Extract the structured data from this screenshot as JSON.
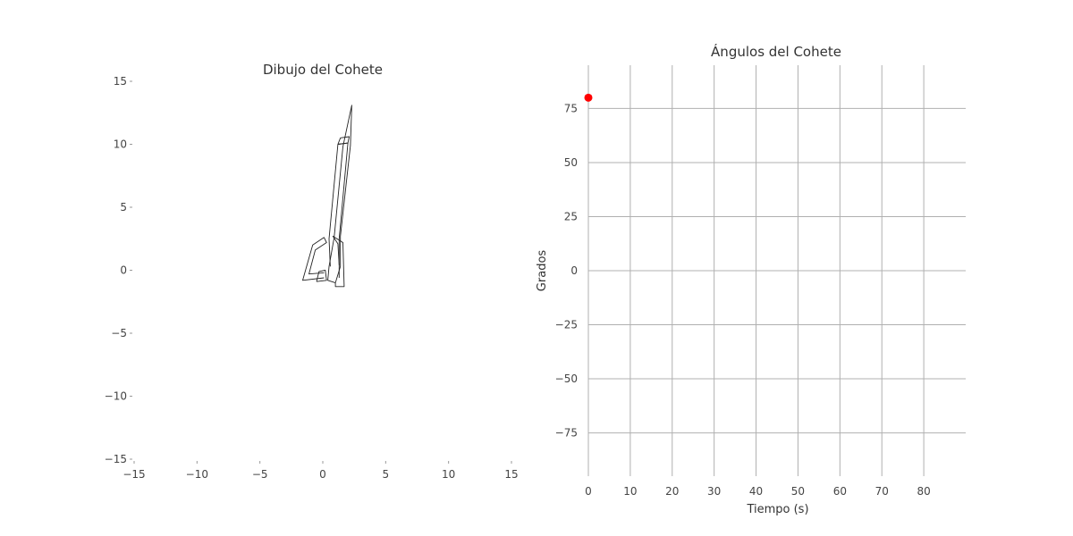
{
  "chart_data": [
    {
      "type": "line",
      "title": "Dibujo del Cohete",
      "xlabel": "",
      "ylabel": "",
      "xlim": [
        -15,
        15
      ],
      "ylim": [
        -15,
        15
      ],
      "xticks": [
        -15,
        -10,
        -5,
        0,
        5,
        10,
        15
      ],
      "xtick_labels": [
        "−15",
        "−10",
        "−5",
        "0",
        "5",
        "10",
        "15"
      ],
      "yticks": [
        -15,
        -10,
        -5,
        0,
        5,
        10,
        15
      ],
      "ytick_labels": [
        "−15",
        "−10",
        "−5",
        "0",
        "5",
        "10",
        "15"
      ],
      "grid": false,
      "equal_aspect": true,
      "shapes": [
        {
          "name": "body",
          "points": [
            [
              1.0,
              -1.0
            ],
            [
              0.4,
              -0.8
            ],
            [
              0.5,
              0.3
            ],
            [
              0.9,
              2.6
            ],
            [
              1.6,
              9.8
            ],
            [
              2.3,
              13.1
            ],
            [
              2.2,
              9.9
            ],
            [
              1.4,
              2.7
            ],
            [
              1.4,
              0.3
            ],
            [
              1.0,
              -1.0
            ]
          ]
        },
        {
          "name": "body-inner",
          "points": [
            [
              1.3,
              -0.6
            ],
            [
              1.3,
              2.5
            ],
            [
              2.0,
              10.1
            ],
            [
              1.2,
              10.0
            ],
            [
              0.5,
              2.5
            ],
            [
              0.6,
              0.3
            ]
          ]
        },
        {
          "name": "nose-band",
          "points": [
            [
              1.2,
              10.0
            ],
            [
              2.0,
              10.1
            ],
            [
              2.1,
              10.6
            ],
            [
              1.4,
              10.5
            ],
            [
              1.2,
              10.0
            ]
          ]
        },
        {
          "name": "fin-left",
          "points": [
            [
              0.1,
              -0.6
            ],
            [
              -1.6,
              -0.8
            ],
            [
              -0.8,
              2.0
            ],
            [
              0.1,
              2.6
            ],
            [
              0.3,
              2.2
            ],
            [
              -0.6,
              1.6
            ],
            [
              -1.1,
              -0.3
            ],
            [
              0.1,
              -0.2
            ]
          ]
        },
        {
          "name": "fin-right",
          "points": [
            [
              1.0,
              -1.0
            ],
            [
              1.0,
              -1.3
            ],
            [
              1.7,
              -1.3
            ],
            [
              1.6,
              2.2
            ],
            [
              0.8,
              2.7
            ],
            [
              1.2,
              2.1
            ],
            [
              1.3,
              0.4
            ]
          ]
        },
        {
          "name": "nozzle",
          "points": [
            [
              -0.5,
              -0.9
            ],
            [
              -0.3,
              -0.1
            ],
            [
              0.2,
              0.0
            ],
            [
              0.3,
              -0.8
            ],
            [
              -0.5,
              -0.9
            ]
          ]
        }
      ]
    },
    {
      "type": "scatter",
      "title": "Ángulos del Cohete",
      "xlabel": "Tiempo (s)",
      "ylabel": "Grados",
      "xlim": [
        0,
        90
      ],
      "ylim": [
        -95,
        95
      ],
      "xticks": [
        0,
        10,
        20,
        30,
        40,
        50,
        60,
        70,
        80
      ],
      "xtick_labels": [
        "0",
        "10",
        "20",
        "30",
        "40",
        "50",
        "60",
        "70",
        "80"
      ],
      "yticks": [
        -75,
        -50,
        -25,
        0,
        25,
        50,
        75
      ],
      "ytick_labels": [
        "−75",
        "−50",
        "−25",
        "0",
        "25",
        "50",
        "75"
      ],
      "grid": true,
      "series": [
        {
          "name": "",
          "color": "#ff0000",
          "points": [
            [
              0,
              80
            ]
          ]
        }
      ]
    }
  ]
}
